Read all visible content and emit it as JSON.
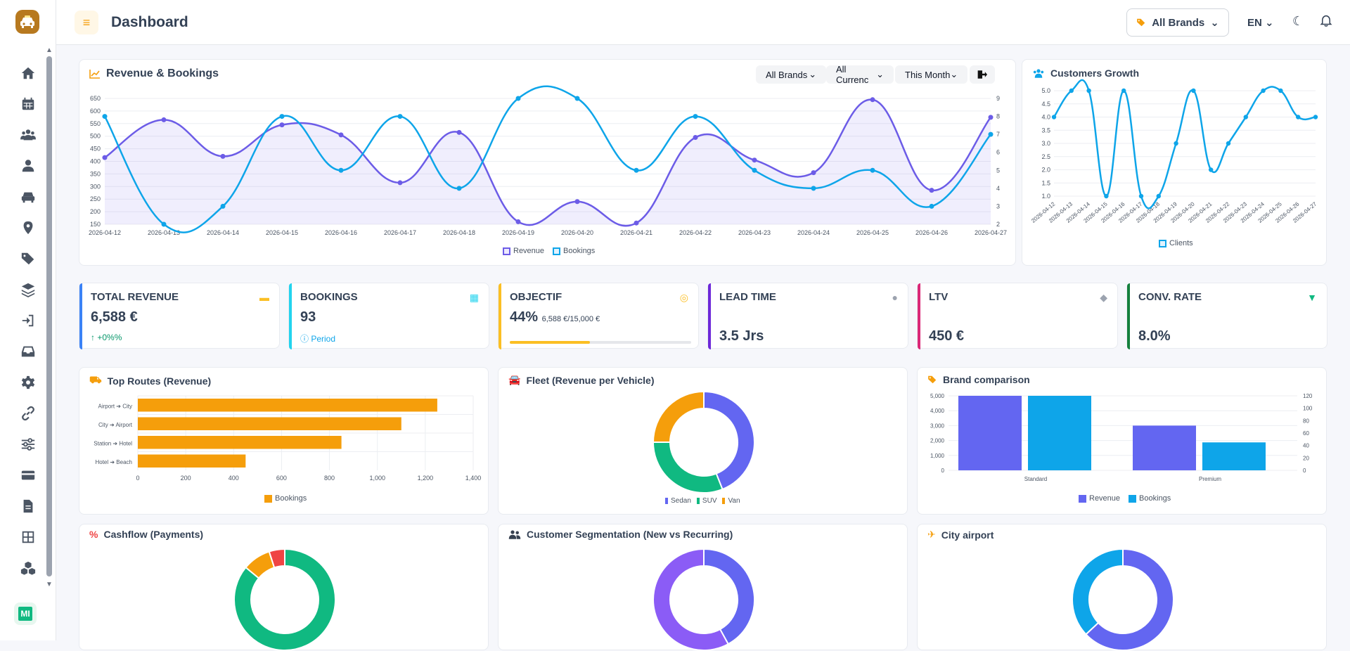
{
  "header": {
    "title": "Dashboard",
    "brand_filter": "All Brands",
    "language": "EN"
  },
  "sidebar": {
    "avatar": "MI",
    "items": [
      "home",
      "calendar",
      "users",
      "user",
      "car",
      "location",
      "tags",
      "layers",
      "sign-in",
      "inbox",
      "settings",
      "link",
      "sliders",
      "credit-card",
      "document",
      "grid",
      "cubes"
    ]
  },
  "revenue_card": {
    "title": "Revenue & Bookings",
    "filters": [
      "All Brands",
      "All Currenc",
      "This Month"
    ]
  },
  "growth_card": {
    "title": "Customers Growth"
  },
  "kpis": [
    {
      "label": "TOTAL REVENUE",
      "value": "6,588 €",
      "sub": "+0%%",
      "color": "#3b82f6",
      "sub_color": "#059669"
    },
    {
      "label": "BOOKINGS",
      "value": "93",
      "sub": "Period",
      "color": "#22d3ee",
      "sub_color": "#0ea5e9"
    },
    {
      "label": "OBJECTIF",
      "value": "44%",
      "sub": "6,588 €/15,000 €",
      "color": "#fbbf24",
      "progress": 0.44
    },
    {
      "label": "LEAD TIME",
      "value": "3.5 Jrs",
      "sub": "",
      "color": "#6d28d9"
    },
    {
      "label": "LTV",
      "value": "450 €",
      "sub": "",
      "color": "#db2777"
    },
    {
      "label": "CONV. RATE",
      "value": "8.0%",
      "sub": "",
      "color": "#15803d"
    }
  ],
  "routes_card": {
    "title": "Top Routes (Revenue)"
  },
  "fleet_card": {
    "title": "Fleet (Revenue per Vehicle)"
  },
  "brand_card": {
    "title": "Brand comparison"
  },
  "cashflow_card": {
    "title": "Cashflow (Payments)"
  },
  "segmentation_card": {
    "title": "Customer Segmentation (New vs Recurring)"
  },
  "airport_card": {
    "title": "City airport"
  },
  "chart_data": [
    {
      "type": "line",
      "id": "revenue_bookings",
      "x": [
        "2026-04-12",
        "2026-04-13",
        "2026-04-14",
        "2026-04-15",
        "2026-04-16",
        "2026-04-17",
        "2026-04-18",
        "2026-04-19",
        "2026-04-20",
        "2026-04-21",
        "2026-04-22",
        "2026-04-23",
        "2026-04-24",
        "2026-04-25",
        "2026-04-26",
        "2026-04-27"
      ],
      "series": [
        {
          "name": "Revenue",
          "axis": "left",
          "values": [
            415,
            565,
            420,
            545,
            505,
            315,
            515,
            160,
            240,
            155,
            495,
            405,
            355,
            645,
            285,
            575
          ]
        },
        {
          "name": "Bookings",
          "axis": "right",
          "values": [
            8,
            2,
            3,
            8,
            5,
            8,
            4,
            9,
            9,
            5,
            8,
            5,
            4,
            5,
            3,
            7
          ]
        }
      ],
      "yticks_left": [
        150,
        200,
        250,
        300,
        350,
        400,
        450,
        500,
        550,
        600,
        650
      ],
      "yticks_right": [
        2,
        3,
        4,
        5,
        6,
        7,
        8,
        9
      ],
      "colors": [
        "#6c5ce7",
        "#0ea5e9"
      ]
    },
    {
      "type": "line",
      "id": "customers_growth",
      "x": [
        "2026-04-12",
        "2026-04-13",
        "2026-04-14",
        "2026-04-15",
        "2026-04-16",
        "2026-04-17",
        "2026-04-18",
        "2026-04-19",
        "2026-04-20",
        "2026-04-21",
        "2026-04-22",
        "2026-04-23",
        "2026-04-24",
        "2026-04-25",
        "2026-04-26",
        "2026-04-27"
      ],
      "series": [
        {
          "name": "Clients",
          "values": [
            4,
            5,
            5,
            1,
            5,
            1,
            1,
            3,
            5,
            2,
            3,
            4,
            5,
            5,
            4,
            4
          ]
        }
      ],
      "yticks": [
        "1.0",
        "1.5",
        "2.0",
        "2.5",
        "3.0",
        "3.5",
        "4.0",
        "4.5",
        "5.0"
      ]
    },
    {
      "type": "bar",
      "id": "top_routes",
      "orientation": "horizontal",
      "categories": [
        "Airport ➔ City",
        "City ➔ Airport",
        "Station ➔ Hotel",
        "Hotel ➔ Beach"
      ],
      "series": [
        {
          "name": "Bookings",
          "values": [
            1250,
            1100,
            850,
            450
          ]
        }
      ],
      "xticks": [
        "0",
        "200",
        "400",
        "600",
        "800",
        "1,000",
        "1,200",
        "1,400"
      ],
      "xlim": [
        0,
        1400
      ]
    },
    {
      "type": "pie",
      "id": "fleet",
      "labels": [
        "Sedan",
        "SUV",
        "Van"
      ],
      "values": [
        44,
        31,
        25
      ],
      "colors": [
        "#6366f1",
        "#10b981",
        "#f59e0b"
      ]
    },
    {
      "type": "bar",
      "id": "brand_comparison",
      "categories": [
        "Standard",
        "Premium"
      ],
      "series": [
        {
          "name": "Revenue",
          "axis": "left",
          "values": [
            5000,
            3000
          ]
        },
        {
          "name": "Bookings",
          "axis": "right",
          "values": [
            120,
            45
          ]
        }
      ],
      "yticks_left": [
        "0",
        "1,000",
        "2,000",
        "3,000",
        "4,000",
        "5,000"
      ],
      "yticks_right": [
        "0",
        "20",
        "40",
        "60",
        "80",
        "100",
        "120"
      ]
    },
    {
      "type": "pie",
      "id": "cashflow",
      "values": [
        86,
        9,
        5
      ],
      "colors": [
        "#10b981",
        "#f59e0b",
        "#ef4444"
      ]
    },
    {
      "type": "pie",
      "id": "segmentation",
      "values": [
        42,
        58
      ],
      "colors": [
        "#6366f1",
        "#8b5cf6"
      ]
    },
    {
      "type": "pie",
      "id": "airport",
      "values": [
        63,
        37
      ],
      "colors": [
        "#6366f1",
        "#0ea5e9"
      ]
    }
  ]
}
